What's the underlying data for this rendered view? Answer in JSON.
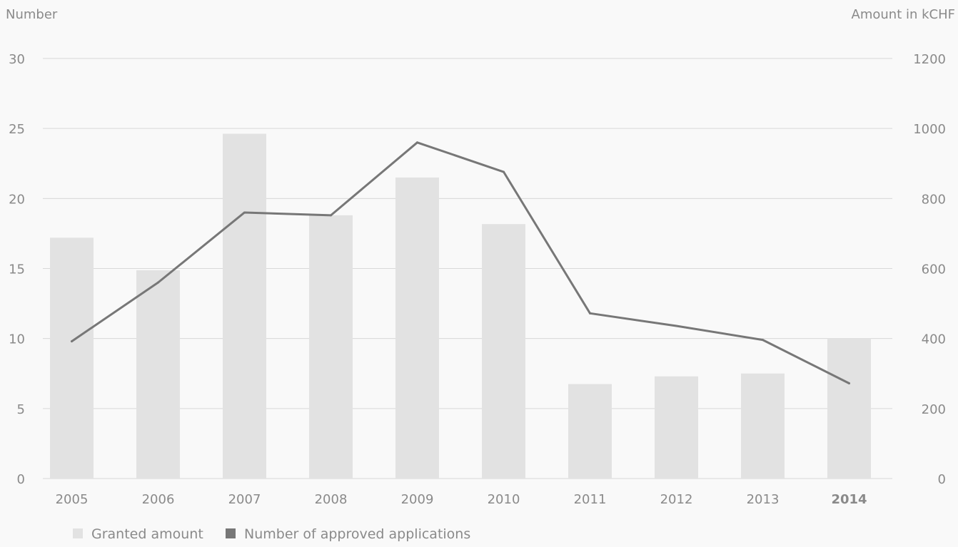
{
  "chart_data": {
    "type": "bar",
    "categories": [
      "2005",
      "2006",
      "2007",
      "2008",
      "2009",
      "2010",
      "2011",
      "2012",
      "2013",
      "2014"
    ],
    "highlight_category": "2014",
    "series": [
      {
        "name": "Granted amount",
        "type": "bar",
        "axis": "right",
        "values": [
          688,
          595,
          985,
          752,
          860,
          727,
          270,
          292,
          300,
          400
        ],
        "color": "#e2e2e2"
      },
      {
        "name": "Number of approved applications",
        "type": "line",
        "axis": "left",
        "values": [
          9.8,
          14,
          19,
          18.8,
          24,
          21.9,
          11.8,
          10.9,
          9.9,
          6.8
        ],
        "color": "#777777"
      }
    ],
    "ylabel_left": "Number",
    "ylabel_right": "Amount in kCHF",
    "ylim_left": [
      0,
      30
    ],
    "ylim_right": [
      0,
      1200
    ],
    "yticks_left": [
      0,
      5,
      10,
      15,
      20,
      25,
      30
    ],
    "yticks_right": [
      0,
      200,
      400,
      600,
      800,
      1000,
      1200
    ],
    "grid": true,
    "gridColor": "#d8d8d8",
    "textColor": "#8a8a8a",
    "legend_position": "bottom-left"
  }
}
